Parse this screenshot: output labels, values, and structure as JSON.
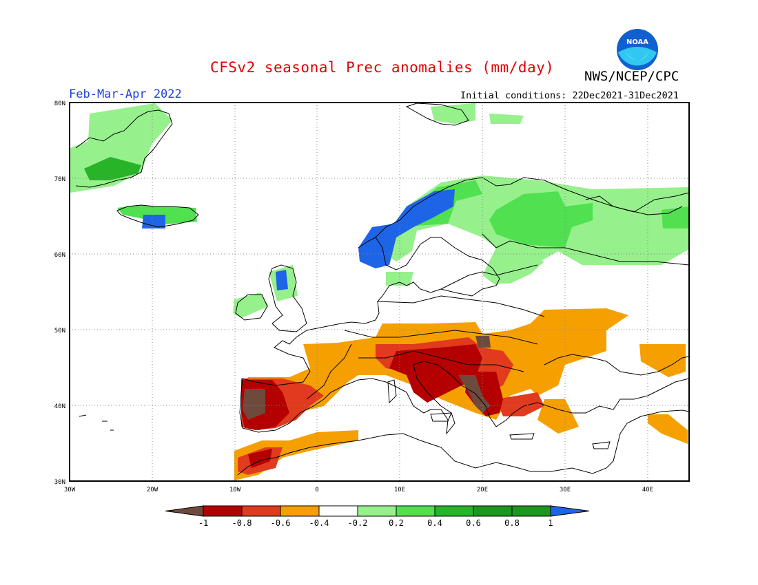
{
  "title": "CFSv2 seasonal Prec anomalies (mm/day)",
  "agency": "NWS/NCEP/CPC",
  "logo_text": "NOAA",
  "season": "Feb-Mar-Apr 2022",
  "initial_conditions": "Initial conditions: 22Dec2021-31Dec2021",
  "map": {
    "lon_range": [
      -30,
      45
    ],
    "lat_range": [
      30,
      80
    ],
    "lat_ticks": [
      "80N",
      "70N",
      "60N",
      "50N",
      "40N",
      "30N"
    ],
    "lon_ticks": [
      "30W",
      "20W",
      "10W",
      "0",
      "10E",
      "20E",
      "30E",
      "40E"
    ]
  },
  "colorbar": {
    "labels": [
      "-1",
      "-0.8",
      "-0.6",
      "-0.4",
      "-0.2",
      "0.2",
      "0.4",
      "0.6",
      "0.8",
      "1"
    ],
    "colors": [
      "#6e4a3c",
      "#b40000",
      "#e13a1e",
      "#f5a000",
      "#ffffff",
      "#96f08c",
      "#50e050",
      "#28b428",
      "#1e961e",
      "#1e64e6"
    ]
  },
  "anomaly_regions": [
    {
      "name": "greenland-wet",
      "level": 0.3,
      "color": "#96f08c"
    },
    {
      "name": "scandinavia-wet",
      "level": 0.5,
      "color": "#50e050"
    },
    {
      "name": "norway-coast-very-wet",
      "level": 1.0,
      "color": "#1e64e6"
    },
    {
      "name": "iberia-dry",
      "level": -0.8,
      "color": "#b40000"
    },
    {
      "name": "portugal-extreme-dry",
      "level": -1.0,
      "color": "#6e4a3c"
    },
    {
      "name": "italy-balkans-dry",
      "level": -0.7,
      "color": "#b40000"
    },
    {
      "name": "central-europe-dry",
      "level": -0.3,
      "color": "#f5a000"
    }
  ]
}
